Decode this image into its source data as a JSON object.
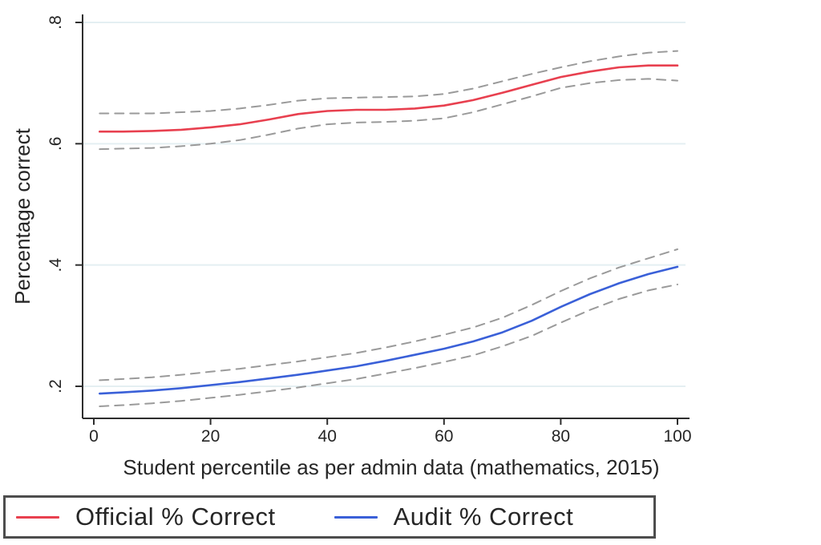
{
  "figure": {
    "ylabel": "Percentage correct",
    "xlabel": "Student percentile as per admin data (mathematics, 2015)"
  },
  "legend": {
    "items": [
      {
        "label": "Official % Correct",
        "color": "#e8404f"
      },
      {
        "label": "Audit % Correct",
        "color": "#3a60d8"
      }
    ]
  },
  "colors": {
    "official": "#e8404f",
    "audit": "#3a60d8",
    "ci_dashed": "#9a9a9a",
    "gridline": "#e4eff2",
    "axis": "#2e2e2e",
    "text": "#262626"
  },
  "chart_data": {
    "type": "line",
    "title": "",
    "xlabel": "Student percentile as per admin data (mathematics, 2015)",
    "ylabel": "Percentage correct",
    "xlim": [
      0,
      100
    ],
    "ylim": [
      0.15,
      0.8
    ],
    "x_ticks": [
      0,
      20,
      40,
      60,
      80,
      100
    ],
    "y_ticks": [
      0.2,
      0.4,
      0.6,
      0.8
    ],
    "y_tick_labels": [
      ".2",
      ".4",
      ".6",
      ".8"
    ],
    "grid": "horizontal gridlines at y ticks",
    "legend_position": "bottom, boxed",
    "x": [
      1,
      5,
      10,
      15,
      20,
      25,
      30,
      35,
      40,
      45,
      50,
      55,
      60,
      65,
      70,
      75,
      80,
      85,
      90,
      95,
      100
    ],
    "series": [
      {
        "name": "Official % Correct",
        "color": "#e8404f",
        "style": "solid",
        "values": [
          0.62,
          0.62,
          0.621,
          0.623,
          0.627,
          0.632,
          0.64,
          0.649,
          0.654,
          0.656,
          0.656,
          0.658,
          0.663,
          0.672,
          0.684,
          0.697,
          0.71,
          0.719,
          0.726,
          0.729,
          0.729
        ]
      },
      {
        "name": "Official CI upper",
        "color": "#9a9a9a",
        "style": "dashed",
        "values": [
          0.65,
          0.65,
          0.65,
          0.652,
          0.654,
          0.658,
          0.664,
          0.671,
          0.675,
          0.676,
          0.677,
          0.678,
          0.682,
          0.691,
          0.703,
          0.715,
          0.726,
          0.736,
          0.744,
          0.75,
          0.753
        ]
      },
      {
        "name": "Official CI lower",
        "color": "#9a9a9a",
        "style": "dashed",
        "values": [
          0.591,
          0.592,
          0.593,
          0.596,
          0.6,
          0.606,
          0.615,
          0.625,
          0.632,
          0.635,
          0.636,
          0.638,
          0.642,
          0.652,
          0.665,
          0.678,
          0.692,
          0.7,
          0.705,
          0.707,
          0.704
        ]
      },
      {
        "name": "Audit % Correct",
        "color": "#3a60d8",
        "style": "solid",
        "values": [
          0.188,
          0.19,
          0.193,
          0.197,
          0.202,
          0.207,
          0.213,
          0.219,
          0.226,
          0.233,
          0.242,
          0.252,
          0.262,
          0.274,
          0.289,
          0.308,
          0.331,
          0.352,
          0.37,
          0.385,
          0.397
        ]
      },
      {
        "name": "Audit CI upper",
        "color": "#9a9a9a",
        "style": "dashed",
        "values": [
          0.21,
          0.212,
          0.215,
          0.219,
          0.224,
          0.229,
          0.235,
          0.241,
          0.248,
          0.255,
          0.264,
          0.274,
          0.285,
          0.297,
          0.313,
          0.334,
          0.357,
          0.378,
          0.396,
          0.411,
          0.426
        ]
      },
      {
        "name": "Audit CI lower",
        "color": "#9a9a9a",
        "style": "dashed",
        "values": [
          0.167,
          0.169,
          0.172,
          0.176,
          0.181,
          0.186,
          0.192,
          0.198,
          0.205,
          0.212,
          0.221,
          0.23,
          0.24,
          0.251,
          0.266,
          0.283,
          0.305,
          0.326,
          0.344,
          0.358,
          0.368
        ]
      }
    ]
  }
}
